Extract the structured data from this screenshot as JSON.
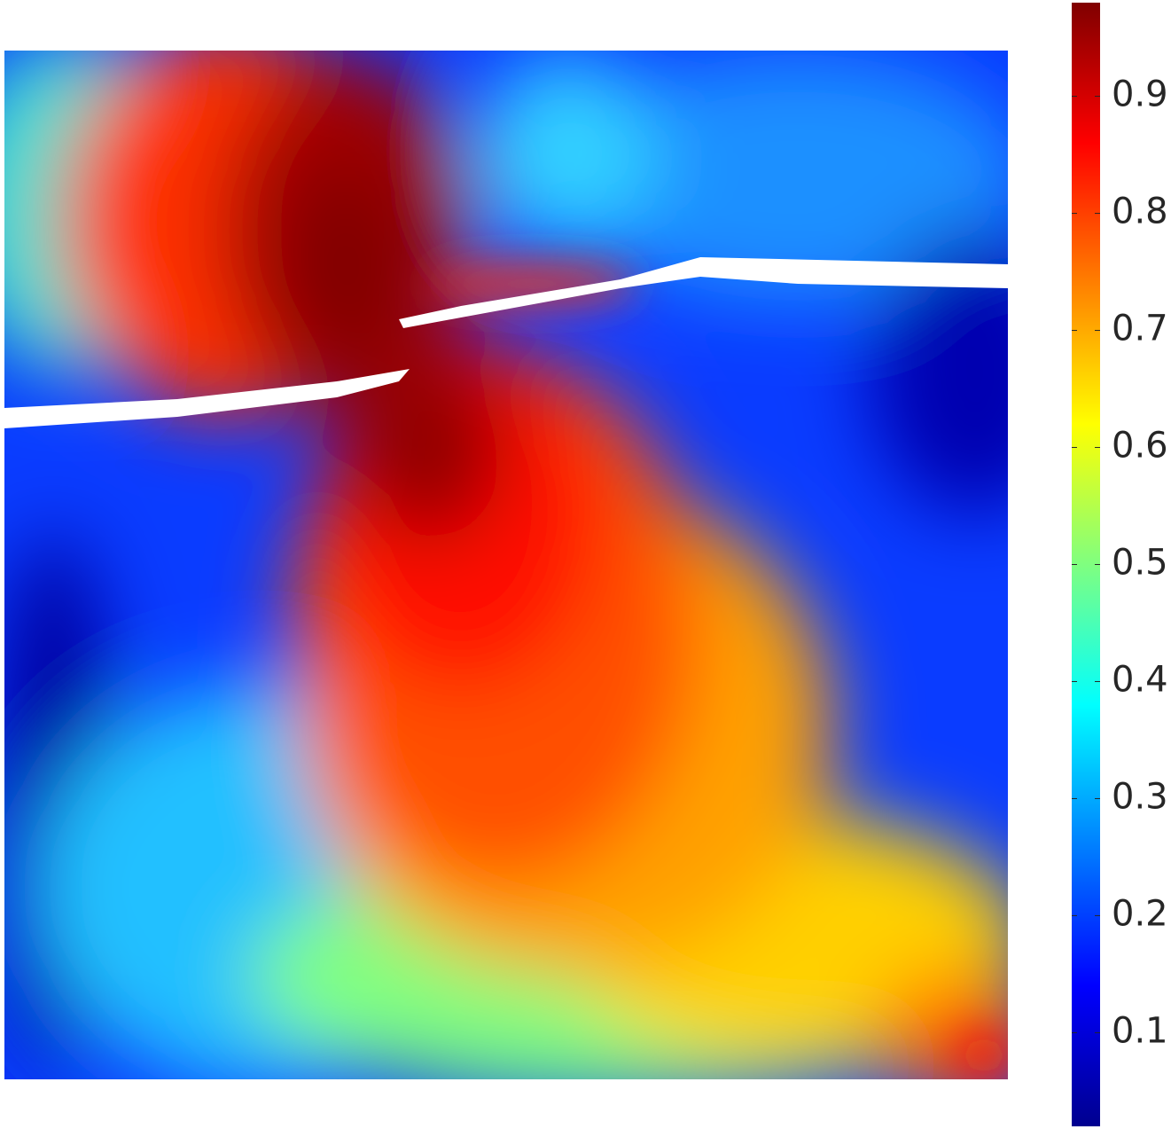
{
  "chart_data": {
    "type": "field",
    "colormap": "jet",
    "clim": [
      0.02,
      0.98
    ],
    "cticks": [
      0.1,
      0.2,
      0.3,
      0.4,
      0.5,
      0.6,
      0.7,
      0.8,
      0.9
    ]
  }
}
